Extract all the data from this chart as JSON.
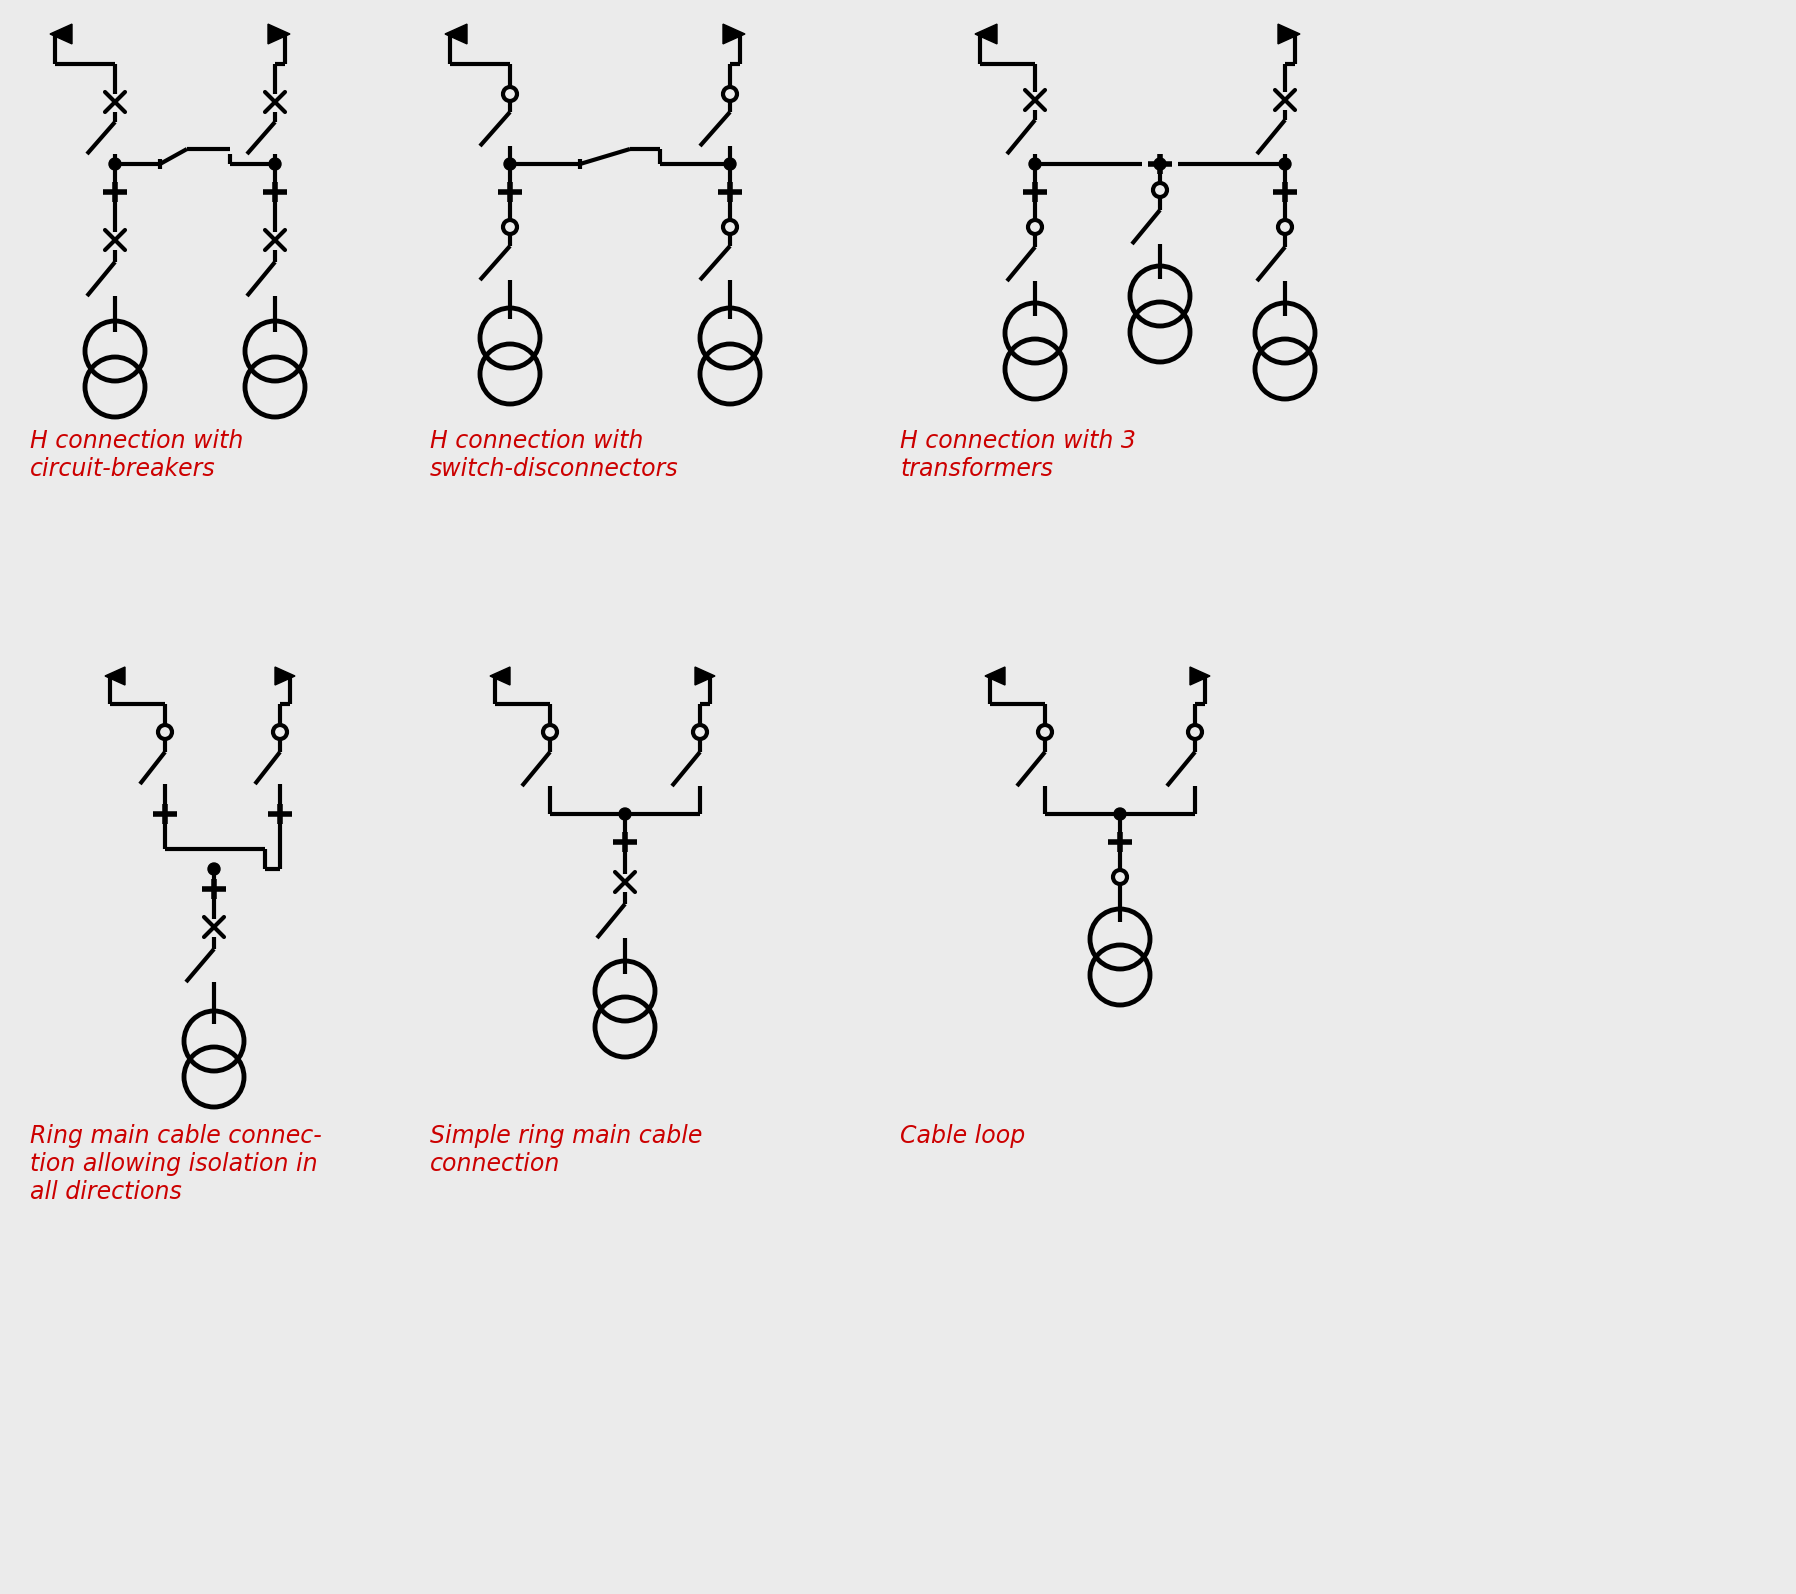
{
  "background_color": "#ebebeb",
  "line_color": "#000000",
  "label_color": "#cc0000",
  "labels": [
    "H connection with\ncircuit-breakers",
    "H connection with\nswitch-disconnectors",
    "H connection with 3\ntransformers",
    "Ring main cable connec-\ntion allowing isolation in\nall directions",
    "Simple ring main cable\nconnection",
    "Cable loop"
  ],
  "label_fontsize": 17,
  "figsize": [
    17.96,
    15.94
  ],
  "dpi": 100
}
